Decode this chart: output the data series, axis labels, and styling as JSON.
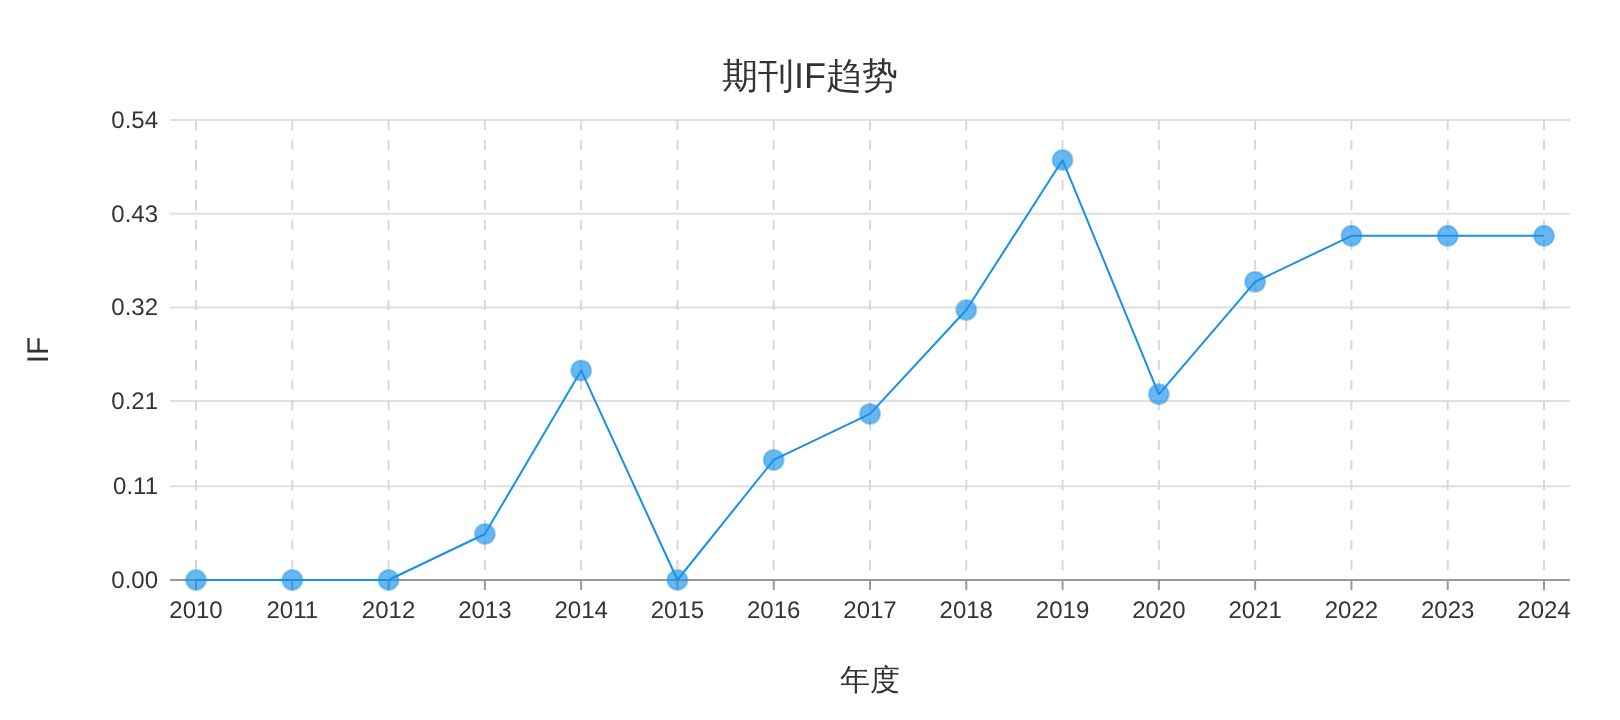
{
  "chart_data": {
    "type": "line",
    "title": "期刊IF趋势",
    "xlabel": "年度",
    "ylabel": "IF",
    "categories": [
      "2010",
      "2011",
      "2012",
      "2013",
      "2014",
      "2015",
      "2016",
      "2017",
      "2018",
      "2019",
      "2020",
      "2021",
      "2022",
      "2023",
      "2024"
    ],
    "series": [
      {
        "color": "#1890e8",
        "values": [
          0,
          0,
          0,
          0.054,
          0.246,
          0,
          0.141,
          0.195,
          0.317,
          0.493,
          0.218,
          0.35,
          0.404,
          0.404,
          0.404
        ]
      }
    ],
    "ylim": [
      0,
      0.54
    ],
    "yticks": [
      {
        "value": 0,
        "label": "0.00"
      },
      0.11,
      0.21,
      0.32,
      0.43,
      0.54
    ],
    "grid": true,
    "marker": "circle",
    "line_style": "solid"
  }
}
